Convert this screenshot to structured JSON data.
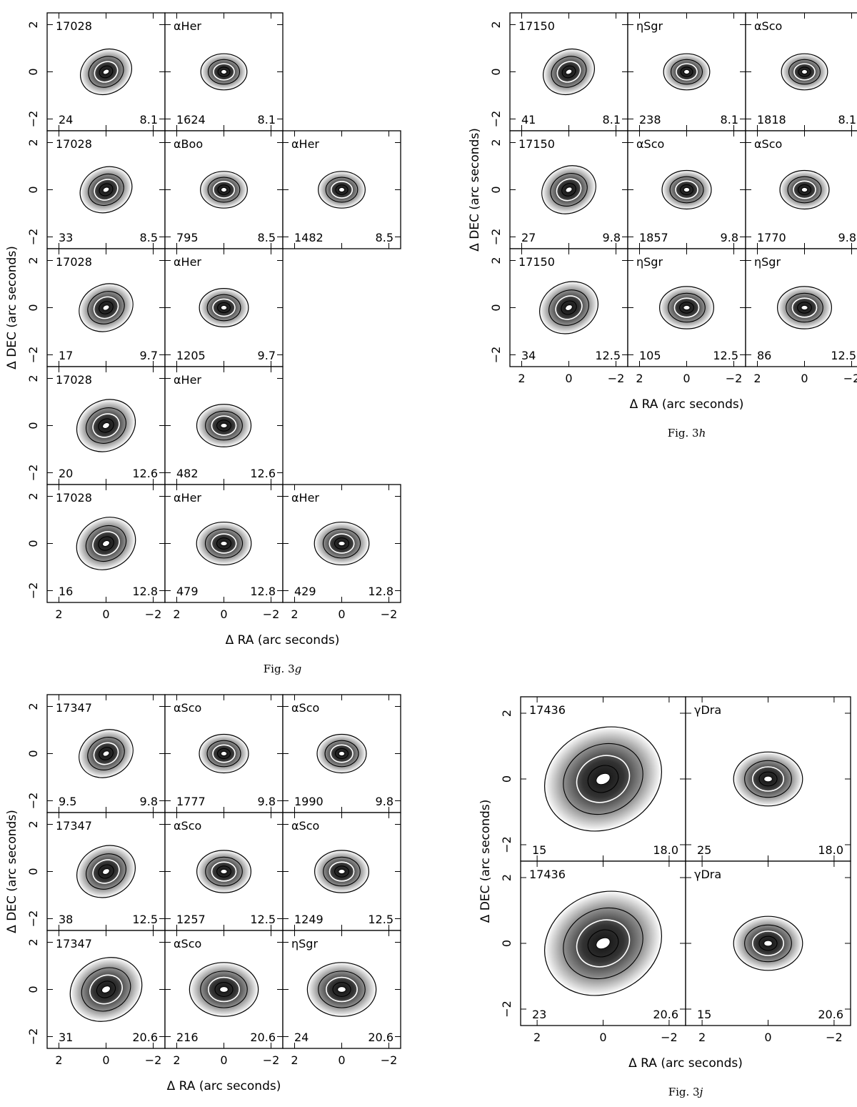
{
  "figures": [
    {
      "id": "g",
      "caption_prefix": "Fig. 3",
      "caption_letter": "g",
      "xlabel": "Δ RA (arc seconds)",
      "ylabel": "Δ DEC (arc seconds)",
      "x_ticks": [
        "2",
        "0",
        "−2"
      ],
      "y_ticks": [
        "2",
        "0",
        "−2"
      ],
      "panels": [
        {
          "row": 0,
          "col": 0,
          "name": "17028",
          "left": "24",
          "right": "8.1"
        },
        {
          "row": 0,
          "col": 1,
          "name": "αHer",
          "left": "1624",
          "right": "8.1"
        },
        {
          "row": 1,
          "col": 0,
          "name": "17028",
          "left": "33",
          "right": "8.5"
        },
        {
          "row": 1,
          "col": 1,
          "name": "αBoo",
          "left": "795",
          "right": "8.5"
        },
        {
          "row": 1,
          "col": 2,
          "name": "αHer",
          "left": "1482",
          "right": "8.5"
        },
        {
          "row": 2,
          "col": 0,
          "name": "17028",
          "left": "17",
          "right": "9.7"
        },
        {
          "row": 2,
          "col": 1,
          "name": "αHer",
          "left": "1205",
          "right": "9.7"
        },
        {
          "row": 3,
          "col": 0,
          "name": "17028",
          "left": "20",
          "right": "12.6"
        },
        {
          "row": 3,
          "col": 1,
          "name": "αHer",
          "left": "482",
          "right": "12.6"
        },
        {
          "row": 4,
          "col": 0,
          "name": "17028",
          "left": "16",
          "right": "12.8"
        },
        {
          "row": 4,
          "col": 1,
          "name": "αHer",
          "left": "479",
          "right": "12.8"
        },
        {
          "row": 4,
          "col": 2,
          "name": "αHer",
          "left": "429",
          "right": "12.8"
        }
      ]
    },
    {
      "id": "h",
      "caption_prefix": "Fig. 3",
      "caption_letter": "h",
      "xlabel": "Δ RA (arc seconds)",
      "ylabel": "Δ DEC (arc seconds)",
      "x_ticks": [
        "2",
        "0",
        "−2"
      ],
      "y_ticks": [
        "2",
        "0",
        "−2"
      ],
      "panels": [
        {
          "row": 0,
          "col": 0,
          "name": "17150",
          "left": "41",
          "right": "8.1"
        },
        {
          "row": 0,
          "col": 1,
          "name": "ηSgr",
          "left": "238",
          "right": "8.1"
        },
        {
          "row": 0,
          "col": 2,
          "name": "αSco",
          "left": "1818",
          "right": "8.1"
        },
        {
          "row": 1,
          "col": 0,
          "name": "17150",
          "left": "27",
          "right": "9.8"
        },
        {
          "row": 1,
          "col": 1,
          "name": "αSco",
          "left": "1857",
          "right": "9.8"
        },
        {
          "row": 1,
          "col": 2,
          "name": "αSco",
          "left": "1770",
          "right": "9.8"
        },
        {
          "row": 2,
          "col": 0,
          "name": "17150",
          "left": "34",
          "right": "12.5"
        },
        {
          "row": 2,
          "col": 1,
          "name": "ηSgr",
          "left": "105",
          "right": "12.5"
        },
        {
          "row": 2,
          "col": 2,
          "name": "ηSgr",
          "left": "86",
          "right": "12.5"
        }
      ]
    },
    {
      "id": "i",
      "caption_prefix": "",
      "caption_letter": "",
      "xlabel": "Δ RA (arc seconds)",
      "ylabel": "Δ DEC (arc seconds)",
      "x_ticks": [
        "2",
        "0",
        "−2"
      ],
      "y_ticks": [
        "2",
        "0",
        "−2"
      ],
      "panels": [
        {
          "row": 0,
          "col": 0,
          "name": "17347",
          "left": "9.5",
          "right": "9.8"
        },
        {
          "row": 0,
          "col": 1,
          "name": "αSco",
          "left": "1777",
          "right": "9.8"
        },
        {
          "row": 0,
          "col": 2,
          "name": "αSco",
          "left": "1990",
          "right": "9.8"
        },
        {
          "row": 1,
          "col": 0,
          "name": "17347",
          "left": "38",
          "right": "12.5"
        },
        {
          "row": 1,
          "col": 1,
          "name": "αSco",
          "left": "1257",
          "right": "12.5"
        },
        {
          "row": 1,
          "col": 2,
          "name": "αSco",
          "left": "1249",
          "right": "12.5"
        },
        {
          "row": 2,
          "col": 0,
          "name": "17347",
          "left": "31",
          "right": "20.6"
        },
        {
          "row": 2,
          "col": 1,
          "name": "αSco",
          "left": "216",
          "right": "20.6"
        },
        {
          "row": 2,
          "col": 2,
          "name": "ηSgr",
          "left": "24",
          "right": "20.6"
        }
      ]
    },
    {
      "id": "j",
      "caption_prefix": "Fig. 3",
      "caption_letter": "j",
      "xlabel": "Δ RA (arc seconds)",
      "ylabel": "Δ DEC (arc seconds)",
      "x_ticks": [
        "2",
        "0",
        "−2"
      ],
      "y_ticks": [
        "2",
        "0",
        "−2"
      ],
      "panels": [
        {
          "row": 0,
          "col": 0,
          "name": "17436",
          "left": "15",
          "right": "18.0"
        },
        {
          "row": 0,
          "col": 1,
          "name": "γDra",
          "left": "25",
          "right": "18.0"
        },
        {
          "row": 1,
          "col": 0,
          "name": "17436",
          "left": "23",
          "right": "20.6"
        },
        {
          "row": 1,
          "col": 1,
          "name": "γDra",
          "left": "15",
          "right": "20.6"
        }
      ]
    }
  ]
}
